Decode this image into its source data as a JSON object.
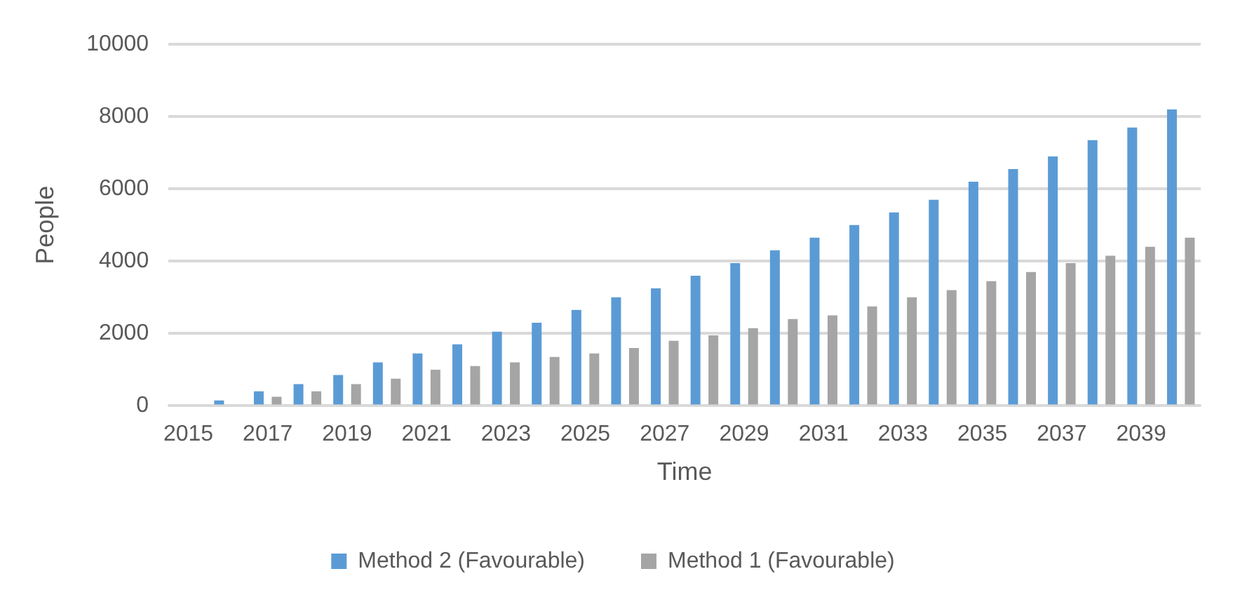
{
  "chart_data": {
    "type": "bar",
    "xlabel": "Time",
    "ylabel": "People",
    "categories": [
      "2015",
      null,
      "2017",
      null,
      "2019",
      null,
      "2021",
      null,
      "2023",
      null,
      "2025",
      null,
      "2027",
      null,
      "2029",
      null,
      "2031",
      null,
      "2033",
      null,
      "2035",
      null,
      "2037",
      null,
      "2039",
      null
    ],
    "series": [
      {
        "name": "Method 2 (Favourable)",
        "color": "#5b9bd5",
        "values": [
          0,
          150,
          400,
          600,
          850,
          1200,
          1450,
          1700,
          2050,
          2300,
          2650,
          3000,
          3250,
          3600,
          3950,
          4300,
          4650,
          5000,
          5350,
          5700,
          6200,
          6550,
          6900,
          7350,
          7700,
          8200
        ]
      },
      {
        "name": "Method 1 (Favourable)",
        "color": "#a5a5a5",
        "values": [
          0,
          0,
          250,
          400,
          600,
          750,
          1000,
          1100,
          1200,
          1350,
          1450,
          1600,
          1800,
          1950,
          2150,
          2400,
          2500,
          2750,
          3000,
          3200,
          3450,
          3700,
          3950,
          4150,
          4400,
          4650
        ]
      }
    ],
    "ylim": [
      0,
      10000
    ],
    "yticks": [
      0,
      2000,
      4000,
      6000,
      8000,
      10000
    ],
    "grid": "y",
    "legend": "bottom"
  }
}
